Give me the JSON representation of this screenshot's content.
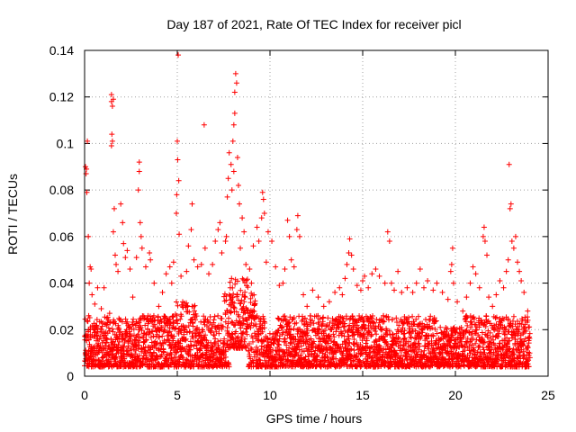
{
  "chart_data": {
    "type": "scatter",
    "title": "Day 187 of 2021, Rate Of TEC Index for receiver picl",
    "xlabel": "GPS time / hours",
    "ylabel": "ROTI / TECUs",
    "xlim": [
      0,
      25
    ],
    "ylim": [
      0,
      0.14
    ],
    "xticks": [
      "0",
      "5",
      "10",
      "15",
      "20",
      "25"
    ],
    "xtick_values": [
      0,
      5,
      10,
      15,
      20,
      25
    ],
    "yticks": [
      "0",
      "0.02",
      "0.04",
      "0.06",
      "0.08",
      "0.1",
      "0.12",
      "0.14"
    ],
    "ytick_values": [
      0,
      0.02,
      0.04,
      0.06,
      0.08,
      0.1,
      0.12,
      0.14
    ],
    "grid": true,
    "marker": "+",
    "color": "#ff0000",
    "series": [
      {
        "name": "ROTI",
        "points": [
          [
            0.05,
            0.09
          ],
          [
            0.1,
            0.089
          ],
          [
            0.15,
            0.101
          ],
          [
            0.08,
            0.087
          ],
          [
            0.12,
            0.079
          ],
          [
            0.2,
            0.06
          ],
          [
            0.3,
            0.047
          ],
          [
            0.25,
            0.04
          ],
          [
            0.4,
            0.035
          ],
          [
            0.35,
            0.046
          ],
          [
            0.55,
            0.031
          ],
          [
            0.7,
            0.038
          ],
          [
            0.9,
            0.029
          ],
          [
            1.05,
            0.038
          ],
          [
            1.2,
            0.025
          ],
          [
            1.35,
            0.027
          ],
          [
            1.45,
            0.121
          ],
          [
            1.45,
            0.118
          ],
          [
            1.5,
            0.116
          ],
          [
            1.47,
            0.104
          ],
          [
            1.5,
            0.101
          ],
          [
            1.45,
            0.099
          ],
          [
            1.55,
            0.119
          ],
          [
            1.6,
            0.072
          ],
          [
            1.55,
            0.062
          ],
          [
            1.65,
            0.052
          ],
          [
            1.7,
            0.048
          ],
          [
            1.8,
            0.045
          ],
          [
            1.95,
            0.074
          ],
          [
            2.05,
            0.066
          ],
          [
            2.1,
            0.057
          ],
          [
            2.2,
            0.051
          ],
          [
            2.3,
            0.054
          ],
          [
            2.45,
            0.046
          ],
          [
            2.6,
            0.034
          ],
          [
            2.8,
            0.051
          ],
          [
            2.95,
            0.092
          ],
          [
            2.95,
            0.088
          ],
          [
            2.9,
            0.08
          ],
          [
            3.0,
            0.066
          ],
          [
            3.05,
            0.06
          ],
          [
            3.1,
            0.055
          ],
          [
            3.3,
            0.047
          ],
          [
            3.5,
            0.053
          ],
          [
            3.55,
            0.05
          ],
          [
            3.75,
            0.04
          ],
          [
            4.0,
            0.03
          ],
          [
            4.2,
            0.036
          ],
          [
            4.4,
            0.044
          ],
          [
            4.6,
            0.047
          ],
          [
            4.7,
            0.04
          ],
          [
            4.8,
            0.049
          ],
          [
            4.95,
            0.07
          ],
          [
            5.0,
            0.101
          ],
          [
            5.02,
            0.093
          ],
          [
            5.05,
            0.138
          ],
          [
            5.08,
            0.084
          ],
          [
            4.97,
            0.078
          ],
          [
            5.1,
            0.061
          ],
          [
            5.2,
            0.043
          ],
          [
            5.5,
            0.045
          ],
          [
            5.6,
            0.056
          ],
          [
            5.75,
            0.063
          ],
          [
            5.8,
            0.074
          ],
          [
            5.9,
            0.05
          ],
          [
            6.1,
            0.047
          ],
          [
            6.3,
            0.048
          ],
          [
            6.45,
            0.108
          ],
          [
            6.5,
            0.055
          ],
          [
            6.7,
            0.044
          ],
          [
            6.9,
            0.048
          ],
          [
            7.05,
            0.058
          ],
          [
            7.2,
            0.063
          ],
          [
            7.3,
            0.066
          ],
          [
            7.4,
            0.053
          ],
          [
            7.6,
            0.058
          ],
          [
            7.65,
            0.06
          ],
          [
            7.7,
            0.077
          ],
          [
            7.75,
            0.085
          ],
          [
            7.8,
            0.096
          ],
          [
            7.9,
            0.091
          ],
          [
            7.95,
            0.08
          ],
          [
            8.0,
            0.101
          ],
          [
            8.05,
            0.108
          ],
          [
            8.1,
            0.113
          ],
          [
            8.15,
            0.13
          ],
          [
            8.2,
            0.126
          ],
          [
            8.1,
            0.122
          ],
          [
            8.05,
            0.088
          ],
          [
            8.25,
            0.094
          ],
          [
            8.3,
            0.082
          ],
          [
            8.35,
            0.074
          ],
          [
            8.5,
            0.068
          ],
          [
            8.6,
            0.062
          ],
          [
            8.4,
            0.055
          ],
          [
            8.7,
            0.048
          ],
          [
            8.9,
            0.046
          ],
          [
            9.0,
            0.04
          ],
          [
            9.1,
            0.056
          ],
          [
            9.3,
            0.064
          ],
          [
            9.4,
            0.058
          ],
          [
            9.55,
            0.068
          ],
          [
            9.6,
            0.079
          ],
          [
            9.65,
            0.076
          ],
          [
            9.7,
            0.07
          ],
          [
            9.8,
            0.049
          ],
          [
            9.9,
            0.062
          ],
          [
            10.1,
            0.058
          ],
          [
            10.3,
            0.047
          ],
          [
            10.5,
            0.039
          ],
          [
            10.7,
            0.04
          ],
          [
            10.8,
            0.046
          ],
          [
            10.95,
            0.067
          ],
          [
            11.05,
            0.06
          ],
          [
            11.15,
            0.05
          ],
          [
            11.3,
            0.047
          ],
          [
            11.45,
            0.063
          ],
          [
            11.5,
            0.069
          ],
          [
            11.6,
            0.06
          ],
          [
            11.8,
            0.035
          ],
          [
            12.0,
            0.03
          ],
          [
            12.3,
            0.037
          ],
          [
            12.6,
            0.034
          ],
          [
            12.9,
            0.03
          ],
          [
            13.2,
            0.032
          ],
          [
            13.5,
            0.036
          ],
          [
            13.75,
            0.038
          ],
          [
            13.9,
            0.035
          ],
          [
            14.05,
            0.042
          ],
          [
            14.15,
            0.048
          ],
          [
            14.25,
            0.053
          ],
          [
            14.3,
            0.059
          ],
          [
            14.4,
            0.052
          ],
          [
            14.5,
            0.046
          ],
          [
            14.7,
            0.039
          ],
          [
            14.9,
            0.037
          ],
          [
            15.0,
            0.041
          ],
          [
            15.1,
            0.043
          ],
          [
            15.3,
            0.038
          ],
          [
            15.5,
            0.044
          ],
          [
            15.7,
            0.046
          ],
          [
            15.9,
            0.043
          ],
          [
            16.2,
            0.04
          ],
          [
            16.35,
            0.062
          ],
          [
            16.45,
            0.058
          ],
          [
            16.55,
            0.04
          ],
          [
            16.7,
            0.037
          ],
          [
            16.9,
            0.045
          ],
          [
            17.1,
            0.036
          ],
          [
            17.4,
            0.038
          ],
          [
            17.7,
            0.036
          ],
          [
            17.9,
            0.04
          ],
          [
            18.1,
            0.046
          ],
          [
            18.3,
            0.038
          ],
          [
            18.5,
            0.041
          ],
          [
            18.8,
            0.037
          ],
          [
            19.0,
            0.04
          ],
          [
            19.3,
            0.036
          ],
          [
            19.6,
            0.033
          ],
          [
            19.75,
            0.045
          ],
          [
            19.8,
            0.048
          ],
          [
            19.85,
            0.055
          ],
          [
            19.9,
            0.04
          ],
          [
            20.1,
            0.032
          ],
          [
            20.4,
            0.028
          ],
          [
            20.6,
            0.034
          ],
          [
            20.8,
            0.04
          ],
          [
            20.95,
            0.047
          ],
          [
            21.1,
            0.044
          ],
          [
            21.3,
            0.038
          ],
          [
            21.5,
            0.06
          ],
          [
            21.55,
            0.064
          ],
          [
            21.6,
            0.058
          ],
          [
            21.7,
            0.052
          ],
          [
            21.8,
            0.034
          ],
          [
            22.0,
            0.03
          ],
          [
            22.2,
            0.035
          ],
          [
            22.4,
            0.041
          ],
          [
            22.6,
            0.038
          ],
          [
            22.75,
            0.045
          ],
          [
            22.85,
            0.05
          ],
          [
            22.9,
            0.091
          ],
          [
            22.95,
            0.072
          ],
          [
            23.0,
            0.074
          ],
          [
            23.05,
            0.058
          ],
          [
            23.15,
            0.055
          ],
          [
            23.25,
            0.06
          ],
          [
            23.35,
            0.049
          ],
          [
            23.45,
            0.045
          ],
          [
            23.55,
            0.041
          ],
          [
            23.7,
            0.036
          ],
          [
            23.9,
            0.028
          ]
        ]
      }
    ]
  }
}
